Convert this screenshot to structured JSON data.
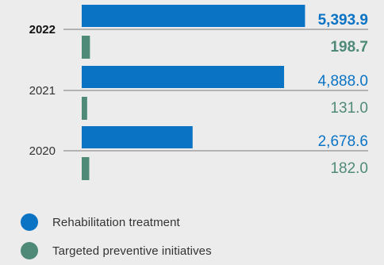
{
  "colors": {
    "rehab": "#0a73c4",
    "preventive": "#4f8a78",
    "axis": "#7a7a7a",
    "year_text": "#333333",
    "year_text_bold": "#111111"
  },
  "chart_data": {
    "type": "bar",
    "orientation": "horizontal",
    "categories": [
      "2022",
      "2021",
      "2020"
    ],
    "highlight_category": "2022",
    "series": [
      {
        "name": "Rehabilitation treatment",
        "values": [
          5393.9,
          4888.0,
          2678.6
        ],
        "labels": [
          "5,393.9",
          "4,888.0",
          "2,678.6"
        ]
      },
      {
        "name": "Targeted preventive initiatives",
        "values": [
          198.7,
          131.0,
          182.0
        ],
        "labels": [
          "198.7",
          "131.0",
          "182.0"
        ]
      }
    ],
    "xlim": [
      0,
      5500
    ],
    "grid": false,
    "legend_position": "bottom-left"
  }
}
